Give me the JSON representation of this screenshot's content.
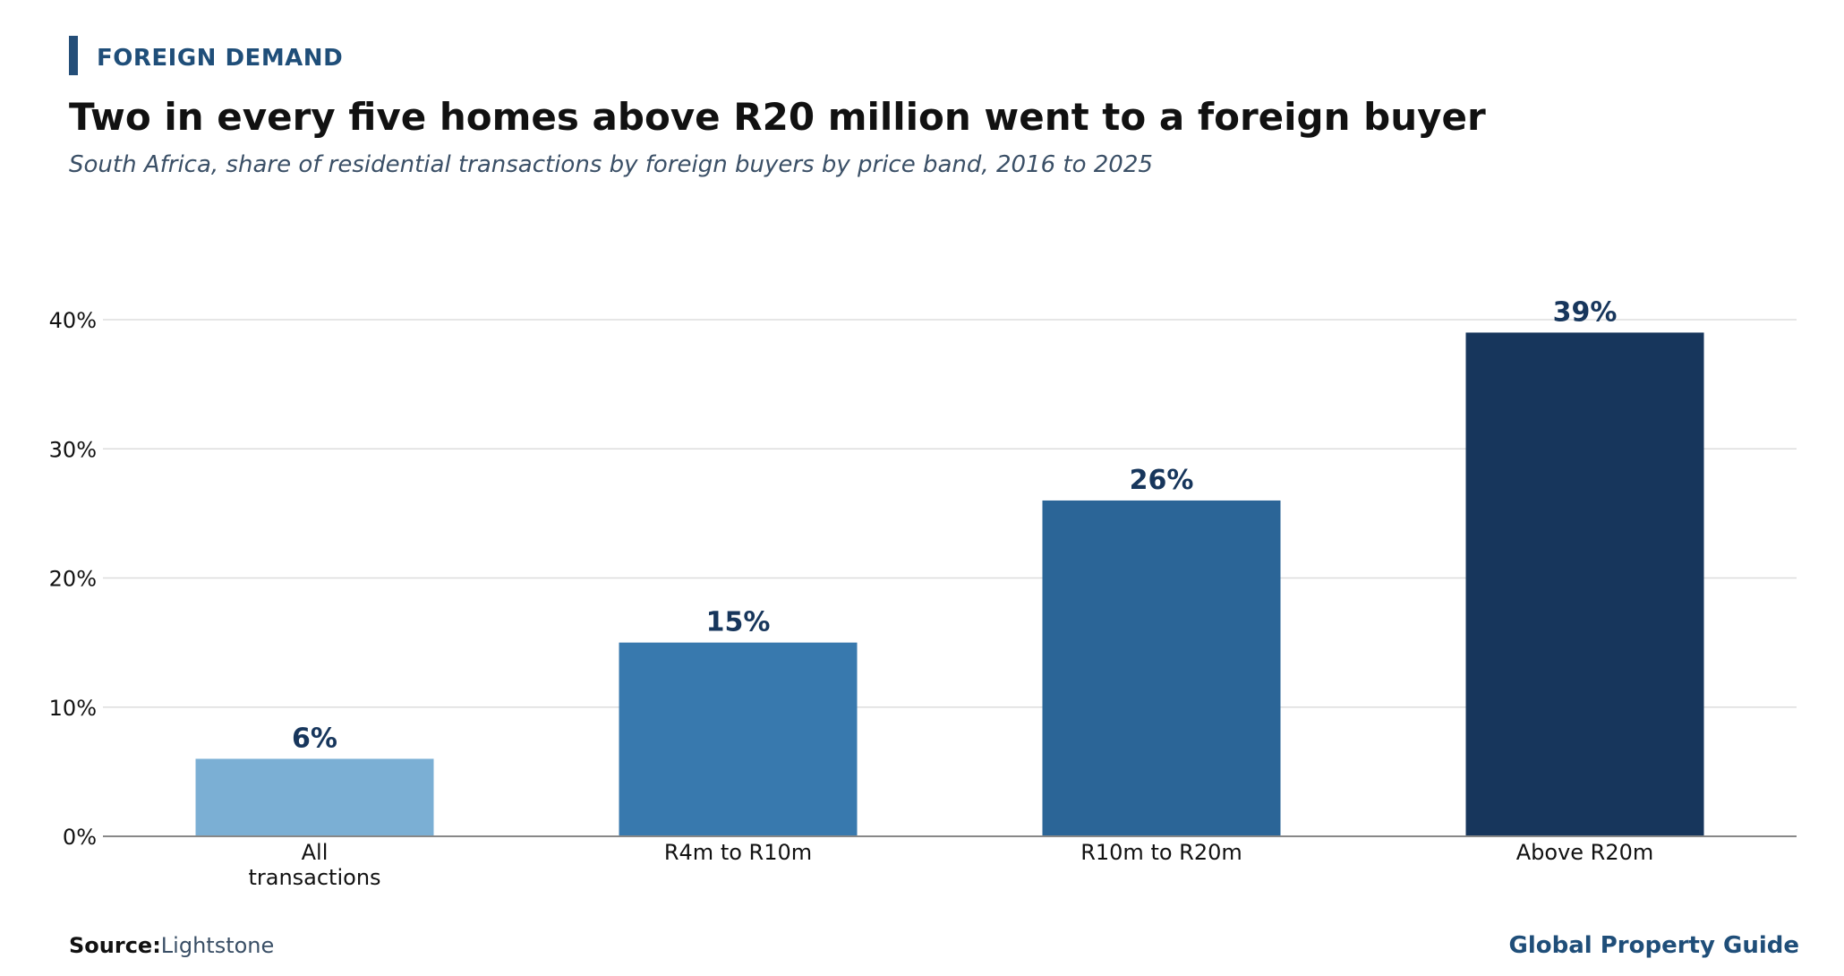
{
  "header": {
    "kicker": "FOREIGN DEMAND",
    "title": "Two in every five homes above R20 million went to a foreign buyer",
    "subtitle": "South Africa, share of residential transactions by foreign buyers by price band, 2016 to 2025"
  },
  "chart_data": {
    "type": "bar",
    "categories": [
      "All transactions",
      "R4m to R10m",
      "R10m to R20m",
      "Above R20m"
    ],
    "category_lines": [
      [
        "All",
        "transactions"
      ],
      [
        "R4m to R10m"
      ],
      [
        "R10m to R20m"
      ],
      [
        "Above R20m"
      ]
    ],
    "values": [
      6,
      15,
      26,
      39
    ],
    "value_labels": [
      "6%",
      "15%",
      "26%",
      "39%"
    ],
    "bar_colors": [
      "#7bafd4",
      "#3879ae",
      "#2b6597",
      "#17365c"
    ],
    "y_ticks": [
      0,
      10,
      20,
      30,
      40
    ],
    "y_tick_labels": [
      "0%",
      "10%",
      "20%",
      "30%",
      "40%"
    ],
    "ylim": [
      0,
      40
    ],
    "grid": true,
    "xlabel": "",
    "ylabel": "",
    "value_label_color": "#17365c"
  },
  "footer": {
    "source_label": "Source:",
    "source_value": "Lightstone",
    "brand": "Global Property Guide"
  }
}
